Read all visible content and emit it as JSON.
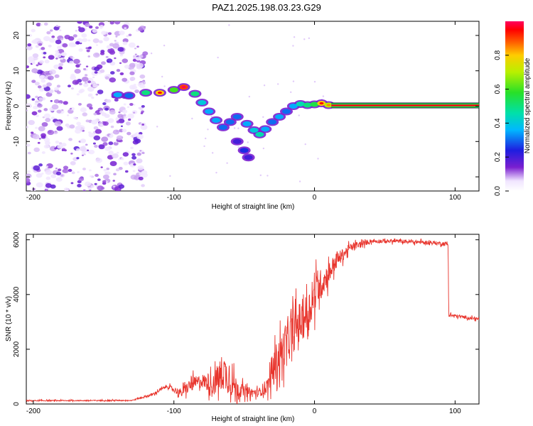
{
  "title": "PAZ1.2025.198.03.23.G29",
  "chart_data": [
    {
      "type": "heatmap",
      "xlabel": "Height of straight line (km)",
      "ylabel": "Frequency (Hz)",
      "xlim": [
        -205,
        117
      ],
      "ylim": [
        -24,
        24
      ],
      "xticks": [
        -200,
        -100,
        0,
        100
      ],
      "yticks": [
        20,
        10,
        0,
        -10,
        -20
      ],
      "colorbar": {
        "label": "Normalized spectral amplitude",
        "range": [
          0,
          1
        ],
        "ticks": [
          "0.0",
          "0.2",
          "0.4",
          "0.6",
          "0.8"
        ]
      },
      "noise_region_x": [
        -205,
        -120
      ],
      "ridge": [
        {
          "x": -140,
          "y": 3.2,
          "a": 0.35
        },
        {
          "x": -132,
          "y": 3.0,
          "a": 0.3
        },
        {
          "x": -120,
          "y": 3.8,
          "a": 0.5
        },
        {
          "x": -110,
          "y": 3.8,
          "a": 0.8
        },
        {
          "x": -100,
          "y": 4.6,
          "a": 0.6
        },
        {
          "x": -93,
          "y": 5.4,
          "a": 0.9
        },
        {
          "x": -85,
          "y": 3.5,
          "a": 0.5
        },
        {
          "x": -80,
          "y": 1.0,
          "a": 0.4
        },
        {
          "x": -75,
          "y": -1.5,
          "a": 0.35
        },
        {
          "x": -70,
          "y": -4.0,
          "a": 0.35
        },
        {
          "x": -65,
          "y": -6.0,
          "a": 0.3
        },
        {
          "x": -60,
          "y": -4.5,
          "a": 0.3
        },
        {
          "x": -55,
          "y": -10.0,
          "a": 0.2
        },
        {
          "x": -50,
          "y": -12.5,
          "a": 0.25
        },
        {
          "x": -47,
          "y": -14.5,
          "a": 0.2
        },
        {
          "x": -55,
          "y": -3.0,
          "a": 0.3
        },
        {
          "x": -48,
          "y": -5.0,
          "a": 0.35
        },
        {
          "x": -43,
          "y": -6.8,
          "a": 0.4
        },
        {
          "x": -39,
          "y": -8.0,
          "a": 0.45
        },
        {
          "x": -35,
          "y": -6.5,
          "a": 0.35
        },
        {
          "x": -30,
          "y": -4.5,
          "a": 0.3
        },
        {
          "x": -25,
          "y": -3.0,
          "a": 0.35
        },
        {
          "x": -20,
          "y": -1.5,
          "a": 0.3
        },
        {
          "x": -15,
          "y": 0.0,
          "a": 0.35
        },
        {
          "x": -10,
          "y": 0.6,
          "a": 0.45
        },
        {
          "x": -5,
          "y": 0.3,
          "a": 0.5
        },
        {
          "x": 0,
          "y": 0.5,
          "a": 0.55
        },
        {
          "x": 5,
          "y": 0.8,
          "a": 0.8
        },
        {
          "x": 10,
          "y": 0.3,
          "a": 0.7
        }
      ],
      "steady_line": {
        "x_start": 12,
        "x_end": 117,
        "y": 0.2,
        "a": 1.0
      }
    },
    {
      "type": "line",
      "xlabel": "Height of straight line (km)",
      "ylabel": "SNR (10 * v/v)",
      "xlim": [
        -205,
        117
      ],
      "ylim": [
        0,
        6200
      ],
      "xticks": [
        -200,
        -100,
        0,
        100
      ],
      "yticks": [
        0,
        2000,
        4000,
        6000
      ],
      "color": "#e8332b",
      "envelope": [
        {
          "x": -205,
          "mean": 120,
          "spread": 40
        },
        {
          "x": -130,
          "mean": 130,
          "spread": 40
        },
        {
          "x": -115,
          "mean": 350,
          "spread": 100
        },
        {
          "x": -105,
          "mean": 650,
          "spread": 120
        },
        {
          "x": -95,
          "mean": 400,
          "spread": 300
        },
        {
          "x": -88,
          "mean": 700,
          "spread": 500
        },
        {
          "x": -80,
          "mean": 850,
          "spread": 500
        },
        {
          "x": -72,
          "mean": 700,
          "spread": 800
        },
        {
          "x": -65,
          "mean": 1200,
          "spread": 1400
        },
        {
          "x": -58,
          "mean": 700,
          "spread": 900
        },
        {
          "x": -50,
          "mean": 450,
          "spread": 400
        },
        {
          "x": -40,
          "mean": 400,
          "spread": 300
        },
        {
          "x": -33,
          "mean": 700,
          "spread": 600
        },
        {
          "x": -28,
          "mean": 1500,
          "spread": 1300
        },
        {
          "x": -20,
          "mean": 2200,
          "spread": 1500
        },
        {
          "x": -12,
          "mean": 2900,
          "spread": 1500
        },
        {
          "x": -5,
          "mean": 3300,
          "spread": 1500
        },
        {
          "x": 2,
          "mean": 4200,
          "spread": 1300
        },
        {
          "x": 8,
          "mean": 4600,
          "spread": 900
        },
        {
          "x": 15,
          "mean": 5200,
          "spread": 600
        },
        {
          "x": 25,
          "mean": 5700,
          "spread": 300
        },
        {
          "x": 40,
          "mean": 5950,
          "spread": 150
        },
        {
          "x": 60,
          "mean": 5950,
          "spread": 130
        },
        {
          "x": 80,
          "mean": 5900,
          "spread": 130
        },
        {
          "x": 95,
          "mean": 5850,
          "spread": 150
        },
        {
          "x": 95.5,
          "mean": 3250,
          "spread": 120
        },
        {
          "x": 117,
          "mean": 3100,
          "spread": 100
        }
      ]
    }
  ]
}
